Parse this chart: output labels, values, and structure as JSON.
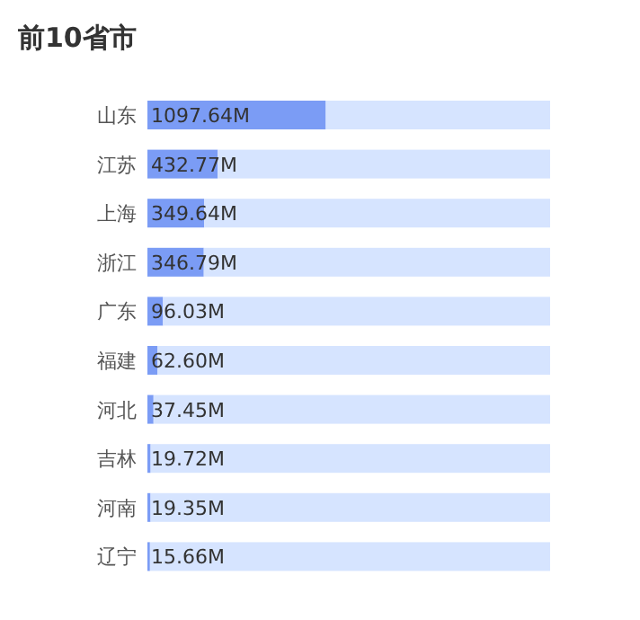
{
  "chart_data": {
    "type": "bar",
    "orientation": "horizontal",
    "stacked": true,
    "title": "前10省市",
    "categories": [
      "山东",
      "江苏",
      "上海",
      "浙江",
      "广东",
      "福建",
      "河北",
      "吉林",
      "河南",
      "辽宁"
    ],
    "series": [
      {
        "color": "#7b9cf5",
        "values": [
          1097.64,
          432.77,
          349.64,
          346.79,
          96.03,
          62.6,
          37.45,
          19.72,
          19.35,
          15.66
        ],
        "value_labels": [
          "1097.64M",
          "432.77M",
          "349.64M",
          "346.79M",
          "96.03M",
          "62.60M",
          "37.45M",
          "19.72M",
          "19.35M",
          "15.66M"
        ]
      },
      {
        "color": "#d6e4ff",
        "values": [
          1380.01,
          2044.88,
          2128.01,
          2130.86,
          2381.62,
          2415.05,
          2440.2,
          2457.93,
          2458.3,
          2461.99
        ]
      }
    ]
  }
}
